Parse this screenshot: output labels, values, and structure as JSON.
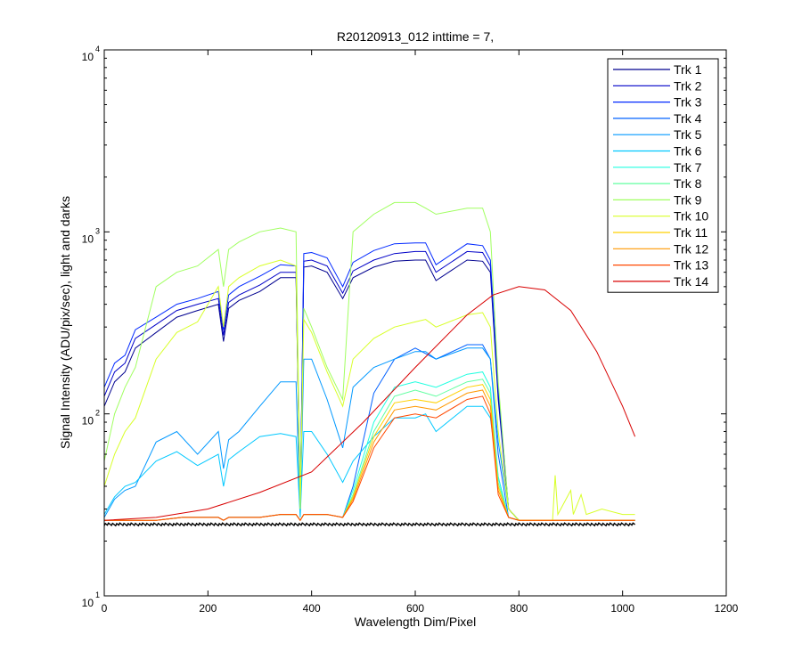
{
  "chart_data": {
    "type": "line",
    "title": "R20120913_012 inttime = 7,",
    "xlabel": "Wavelength Dim/Pixel",
    "ylabel": "Signal Intensity (ADU/pix/sec), light and darks",
    "xlim": [
      0,
      1200
    ],
    "ylim": [
      10,
      10000
    ],
    "yscale": "log",
    "x_ticks": [
      "0",
      "200",
      "400",
      "600",
      "800",
      "1000",
      "1200"
    ],
    "y_ticks": [
      {
        "base": "10",
        "exp": "1",
        "value": 10
      },
      {
        "base": "10",
        "exp": "2",
        "value": 100
      },
      {
        "base": "10",
        "exp": "3",
        "value": 1000
      },
      {
        "base": "10",
        "exp": "4",
        "value": 10000
      }
    ],
    "grid": false,
    "legend_position": "top-right",
    "series": [
      {
        "name": "Trk 1",
        "color": "#00008f",
        "x": [
          0,
          20,
          40,
          60,
          100,
          140,
          180,
          220,
          230,
          240,
          260,
          300,
          340,
          370,
          378,
          385,
          400,
          430,
          460,
          480,
          520,
          560,
          600,
          620,
          640,
          700,
          730,
          745,
          760,
          780,
          800,
          840,
          880,
          920,
          960,
          1000,
          1024
        ],
        "y": [
          110,
          150,
          170,
          230,
          280,
          340,
          370,
          400,
          250,
          380,
          420,
          470,
          560,
          560,
          30,
          640,
          650,
          600,
          430,
          560,
          640,
          690,
          700,
          700,
          540,
          700,
          690,
          600,
          120,
          30,
          26,
          26,
          26,
          26,
          26,
          26,
          26
        ]
      },
      {
        "name": "Trk 2",
        "color": "#0000c8",
        "x": [
          0,
          20,
          40,
          60,
          100,
          140,
          180,
          220,
          230,
          240,
          260,
          300,
          340,
          370,
          378,
          385,
          400,
          430,
          460,
          480,
          520,
          560,
          600,
          620,
          640,
          700,
          730,
          745,
          760,
          780,
          800,
          840,
          880,
          920,
          960,
          1000,
          1024
        ],
        "y": [
          125,
          170,
          190,
          260,
          310,
          370,
          400,
          430,
          270,
          410,
          450,
          510,
          600,
          600,
          30,
          690,
          700,
          650,
          460,
          610,
          700,
          760,
          780,
          780,
          600,
          780,
          770,
          650,
          130,
          30,
          26,
          26,
          26,
          26,
          26,
          26,
          26
        ]
      },
      {
        "name": "Trk 3",
        "color": "#0028ff",
        "x": [
          0,
          20,
          40,
          60,
          100,
          140,
          180,
          220,
          230,
          240,
          260,
          300,
          340,
          370,
          378,
          385,
          400,
          430,
          460,
          480,
          520,
          560,
          600,
          620,
          640,
          700,
          730,
          745,
          760,
          780,
          800,
          840,
          880,
          920,
          960,
          1000,
          1024
        ],
        "y": [
          140,
          190,
          210,
          290,
          340,
          400,
          430,
          470,
          290,
          450,
          500,
          570,
          660,
          650,
          30,
          760,
          770,
          720,
          500,
          680,
          790,
          860,
          870,
          870,
          660,
          860,
          840,
          700,
          140,
          30,
          26,
          26,
          26,
          26,
          26,
          26,
          26
        ]
      },
      {
        "name": "Trk 4",
        "color": "#0060ff",
        "x": [
          0,
          40,
          80,
          100,
          150,
          200,
          220,
          230,
          240,
          260,
          300,
          340,
          370,
          378,
          385,
          400,
          430,
          460,
          480,
          520,
          560,
          600,
          640,
          700,
          730,
          745,
          760,
          780,
          800,
          1024
        ],
        "y": [
          26,
          26,
          26,
          26,
          27,
          27,
          27,
          26,
          27,
          27,
          27,
          28,
          28,
          26,
          28,
          28,
          28,
          27,
          40,
          130,
          200,
          230,
          200,
          240,
          240,
          200,
          60,
          27,
          26,
          26
        ]
      },
      {
        "name": "Trk 5",
        "color": "#0098ff",
        "x": [
          0,
          20,
          40,
          60,
          100,
          140,
          180,
          220,
          230,
          240,
          260,
          300,
          340,
          370,
          378,
          385,
          400,
          430,
          460,
          480,
          520,
          560,
          600,
          620,
          640,
          700,
          730,
          745,
          760,
          780,
          800,
          840,
          880,
          920,
          960,
          1000,
          1024
        ],
        "y": [
          27,
          34,
          38,
          40,
          70,
          80,
          60,
          80,
          50,
          72,
          80,
          110,
          150,
          150,
          28,
          200,
          200,
          120,
          65,
          140,
          180,
          200,
          220,
          220,
          200,
          230,
          230,
          200,
          70,
          30,
          26,
          26,
          26,
          26,
          26,
          26,
          26
        ]
      },
      {
        "name": "Trk 6",
        "color": "#00c8ff",
        "x": [
          0,
          20,
          40,
          60,
          100,
          140,
          180,
          220,
          230,
          240,
          260,
          300,
          340,
          370,
          378,
          385,
          400,
          430,
          460,
          480,
          520,
          560,
          600,
          620,
          640,
          700,
          730,
          745,
          760,
          780,
          800,
          840,
          880,
          920,
          960,
          1000,
          1024
        ],
        "y": [
          28,
          35,
          40,
          42,
          55,
          62,
          52,
          60,
          40,
          56,
          62,
          75,
          78,
          75,
          27,
          80,
          80,
          60,
          42,
          55,
          75,
          95,
          95,
          100,
          80,
          110,
          110,
          95,
          45,
          27,
          26,
          26,
          26,
          26,
          26,
          26,
          26
        ]
      },
      {
        "name": "Trk 7",
        "color": "#20ffe0",
        "x": [
          0,
          40,
          80,
          100,
          150,
          200,
          220,
          230,
          240,
          260,
          300,
          340,
          370,
          378,
          385,
          400,
          430,
          460,
          480,
          520,
          560,
          600,
          640,
          700,
          730,
          745,
          760,
          780,
          800,
          1024
        ],
        "y": [
          26,
          26,
          26,
          26,
          27,
          27,
          27,
          26,
          27,
          27,
          27,
          28,
          28,
          26,
          28,
          28,
          28,
          27,
          38,
          90,
          140,
          150,
          140,
          165,
          170,
          140,
          45,
          27,
          26,
          26
        ]
      },
      {
        "name": "Trk 8",
        "color": "#60ffa0",
        "x": [
          0,
          40,
          80,
          100,
          150,
          200,
          220,
          230,
          240,
          260,
          300,
          340,
          370,
          378,
          385,
          400,
          430,
          460,
          480,
          520,
          560,
          600,
          640,
          700,
          730,
          745,
          760,
          780,
          800,
          1024
        ],
        "y": [
          26,
          26,
          26,
          26,
          27,
          27,
          27,
          26,
          27,
          27,
          27,
          28,
          28,
          26,
          28,
          28,
          28,
          27,
          36,
          80,
          125,
          135,
          125,
          150,
          155,
          130,
          42,
          27,
          26,
          26
        ]
      },
      {
        "name": "Trk 9",
        "color": "#a0ff60",
        "x": [
          0,
          20,
          40,
          60,
          100,
          140,
          180,
          220,
          230,
          240,
          260,
          300,
          340,
          370,
          378,
          385,
          400,
          430,
          460,
          480,
          520,
          560,
          600,
          620,
          640,
          700,
          730,
          745,
          760,
          780,
          800,
          840,
          880,
          920,
          960,
          1000,
          1024
        ],
        "y": [
          55,
          100,
          140,
          180,
          500,
          600,
          650,
          800,
          500,
          800,
          880,
          1000,
          1050,
          1000,
          35,
          380,
          300,
          180,
          120,
          1000,
          1250,
          1450,
          1450,
          1350,
          1250,
          1350,
          1350,
          1000,
          150,
          30,
          26,
          26,
          26,
          26,
          26,
          26,
          26
        ]
      },
      {
        "name": "Trk 10",
        "color": "#d8ff28",
        "x": [
          0,
          20,
          40,
          60,
          100,
          140,
          180,
          220,
          230,
          240,
          260,
          300,
          340,
          370,
          378,
          385,
          400,
          430,
          460,
          480,
          520,
          560,
          600,
          620,
          640,
          700,
          730,
          745,
          760,
          780,
          800,
          840,
          865,
          870,
          875,
          900,
          905,
          920,
          930,
          960,
          1000,
          1024
        ],
        "y": [
          40,
          60,
          80,
          95,
          200,
          280,
          320,
          500,
          300,
          500,
          560,
          650,
          700,
          650,
          30,
          330,
          280,
          170,
          110,
          200,
          260,
          300,
          320,
          330,
          300,
          350,
          360,
          300,
          80,
          30,
          26,
          26,
          26,
          46,
          28,
          38,
          28,
          36,
          28,
          30,
          28,
          28
        ]
      },
      {
        "name": "Trk 11",
        "color": "#ffd000",
        "x": [
          0,
          40,
          80,
          100,
          150,
          200,
          220,
          230,
          240,
          260,
          300,
          340,
          370,
          378,
          385,
          400,
          430,
          460,
          480,
          520,
          560,
          600,
          640,
          700,
          730,
          745,
          760,
          780,
          800,
          1024
        ],
        "y": [
          26,
          26,
          26,
          26,
          27,
          27,
          27,
          26,
          27,
          27,
          27,
          28,
          28,
          26,
          28,
          28,
          28,
          27,
          35,
          75,
          115,
          120,
          115,
          140,
          145,
          120,
          40,
          27,
          26,
          26
        ]
      },
      {
        "name": "Trk 12",
        "color": "#ff9800",
        "x": [
          0,
          40,
          80,
          100,
          150,
          200,
          220,
          230,
          240,
          260,
          300,
          340,
          370,
          378,
          385,
          400,
          430,
          460,
          480,
          520,
          560,
          600,
          640,
          700,
          730,
          745,
          760,
          780,
          800,
          1024
        ],
        "y": [
          26,
          26,
          26,
          26,
          27,
          27,
          27,
          26,
          27,
          27,
          27,
          28,
          28,
          26,
          28,
          28,
          28,
          27,
          34,
          70,
          105,
          110,
          105,
          130,
          135,
          110,
          38,
          27,
          26,
          26
        ]
      },
      {
        "name": "Trk 13",
        "color": "#ff4800",
        "x": [
          0,
          40,
          80,
          100,
          150,
          200,
          220,
          230,
          240,
          260,
          300,
          340,
          370,
          378,
          385,
          400,
          430,
          460,
          480,
          520,
          560,
          600,
          640,
          700,
          730,
          745,
          760,
          780,
          800,
          1024
        ],
        "y": [
          26,
          26,
          26,
          26,
          27,
          27,
          27,
          26,
          27,
          27,
          27,
          28,
          28,
          26,
          28,
          28,
          28,
          27,
          33,
          65,
          95,
          100,
          95,
          120,
          125,
          100,
          36,
          27,
          26,
          26
        ]
      },
      {
        "name": "Trk 14",
        "color": "#d80000",
        "x": [
          0,
          100,
          200,
          300,
          400,
          500,
          600,
          700,
          750,
          800,
          850,
          900,
          950,
          1000,
          1024
        ],
        "y": [
          26,
          27,
          30,
          37,
          48,
          90,
          180,
          350,
          450,
          500,
          480,
          370,
          220,
          110,
          75
        ]
      }
    ]
  }
}
